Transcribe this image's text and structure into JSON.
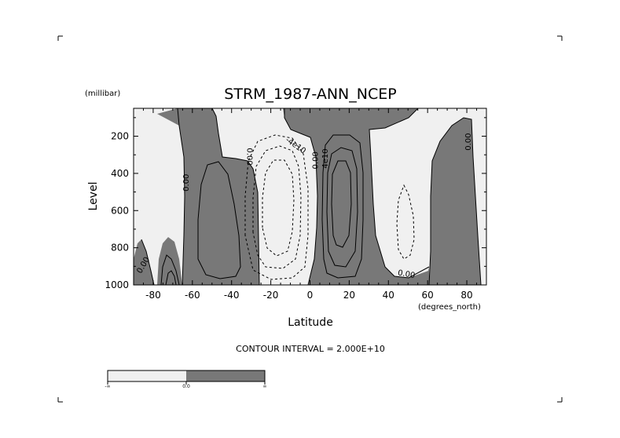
{
  "chart_data": {
    "type": "contour",
    "title": "STRM_1987-ANN_NCEP",
    "xlabel": "Latitude",
    "xunits": "(degrees_north)",
    "ylabel": "Level",
    "yunits": "(millibar)",
    "xlim": [
      -90,
      90
    ],
    "ylim": [
      1000,
      50
    ],
    "y_reversed": true,
    "x_ticks": [
      -80,
      -60,
      -40,
      -20,
      0,
      20,
      40,
      60,
      80
    ],
    "y_ticks": [
      200,
      400,
      600,
      800,
      1000
    ],
    "contour_interval_label": "CONTOUR INTERVAL = 2.000E+10",
    "contour_labels": [
      {
        "text": "0.00",
        "lat": -62,
        "p": 450,
        "rotate": -90
      },
      {
        "text": "0.00",
        "lat": -32,
        "p": 310,
        "rotate": 90
      },
      {
        "text": "0.00",
        "lat": -84,
        "p": 900,
        "rotate": -60
      },
      {
        "text": "-4e10",
        "lat": -8,
        "p": 260,
        "rotate": 35
      },
      {
        "text": "0.00",
        "lat": 4,
        "p": 330,
        "rotate": -90
      },
      {
        "text": "4e10",
        "lat": 9,
        "p": 320,
        "rotate": -90
      },
      {
        "text": "0.00",
        "lat": 49,
        "p": 955,
        "rotate": 10
      },
      {
        "text": "0.00",
        "lat": 82,
        "p": 230,
        "rotate": -90
      }
    ],
    "colorbar": {
      "segments": [
        {
          "color": "#f0f0f0"
        },
        {
          "color": "#787878"
        }
      ],
      "labels": [
        "-∞",
        "0.0",
        "∞"
      ]
    },
    "colors": {
      "negative": "#f0f0f0",
      "positive": "#787878",
      "line": "#000000"
    }
  }
}
